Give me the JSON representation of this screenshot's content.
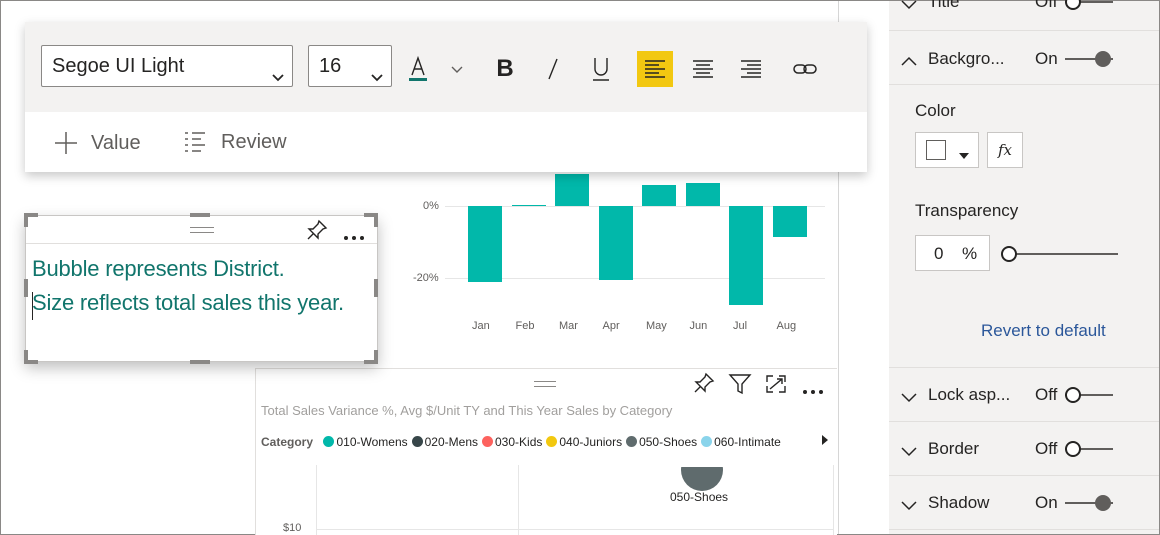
{
  "toolbar": {
    "font_family": "Segoe UI Light",
    "font_size": "16",
    "font_color": "#11756c",
    "add_value_label": "Value",
    "review_label": "Review"
  },
  "textbox": {
    "line1": "Bubble represents District.",
    "line2": "Size reflects total sales this year."
  },
  "chart_data": [
    {
      "type": "bar",
      "categories": [
        "Jan",
        "Feb",
        "Mar",
        "Apr",
        "May",
        "Jun",
        "Jul",
        "Aug"
      ],
      "values": [
        -21,
        0.3,
        9,
        -20.5,
        5.8,
        6.5,
        -27.5,
        -8.5
      ],
      "y_tick_labels": [
        "0%",
        "-20%"
      ],
      "ylim": [
        -30,
        10
      ],
      "bar_color": "#01b8aa"
    },
    {
      "type": "scatter",
      "title": "Total Sales Variance %, Avg $/Unit TY and This Year Sales by Category",
      "legend_title": "Category",
      "legend": [
        {
          "name": "010-Womens",
          "color": "#01b8aa"
        },
        {
          "name": "020-Mens",
          "color": "#374649"
        },
        {
          "name": "030-Kids",
          "color": "#fd625e"
        },
        {
          "name": "040-Juniors",
          "color": "#f2c80f"
        },
        {
          "name": "050-Shoes",
          "color": "#5f6b6d"
        },
        {
          "name": "060-Intimate",
          "color": "#8ad4eb"
        }
      ],
      "points": [
        {
          "label": "050-Shoes",
          "color": "#5f6b6d"
        }
      ],
      "y_tick_labels": [
        "$10"
      ]
    }
  ],
  "pane": {
    "title": {
      "label": "Title",
      "state": "Off"
    },
    "background": {
      "label": "Backgro...",
      "state": "On"
    },
    "color_label": "Color",
    "fx_label": "fx",
    "transparency_label": "Transparency",
    "transparency_value": "0",
    "transparency_unit": "%",
    "transparency_level": 0,
    "revert_label": "Revert to default",
    "lock_aspect": {
      "label": "Lock asp...",
      "state": "Off"
    },
    "border": {
      "label": "Border",
      "state": "Off"
    },
    "shadow": {
      "label": "Shadow",
      "state": "On"
    }
  }
}
